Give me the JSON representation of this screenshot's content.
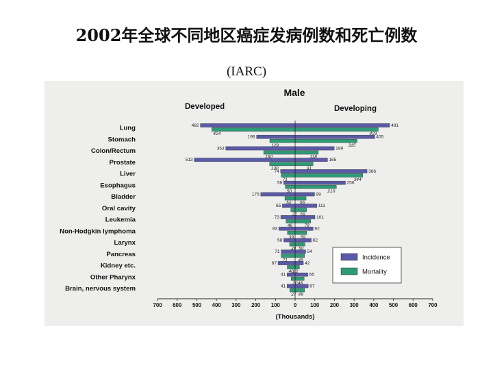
{
  "slide": {
    "title": "2002年全球不同地区癌症发病例数和死亡例数",
    "subtitle": "(IARC)"
  },
  "chart_data": {
    "type": "bar",
    "title": "Male",
    "left_panel_label": "Developed",
    "right_panel_label": "Developing",
    "xlabel": "(Thousands)",
    "xlim": [
      -700,
      700
    ],
    "xticks": [
      -700,
      -600,
      -500,
      -400,
      -300,
      -200,
      -100,
      0,
      100,
      200,
      300,
      400,
      500,
      600,
      700
    ],
    "xtick_labels": [
      "700",
      "600",
      "500",
      "400",
      "300",
      "200",
      "100",
      "0",
      "100",
      "200",
      "300",
      "400",
      "500",
      "600",
      "700"
    ],
    "categories": [
      "Lung",
      "Stomach",
      "Colon/Rectum",
      "Prostate",
      "Liver",
      "Esophagus",
      "Bladder",
      "Oral cavity",
      "Leukemia",
      "Non-Hodgkin lymphoma",
      "Larynx",
      "Pancreas",
      "Kidney etc.",
      "Other Pharynx",
      "Brain, nervous system"
    ],
    "series": [
      {
        "name": "Developed Incidence",
        "color": "#5a5aa8",
        "values": [
          482,
          196,
          353,
          513,
          74,
          58,
          175,
          65,
          73,
          83,
          58,
          71,
          87,
          41,
          41
        ]
      },
      {
        "name": "Developed Mortality",
        "color": "#2f9a78",
        "values": [
          424,
          129,
          160,
          130,
          71,
          50,
          52,
          22,
          46,
          39,
          28,
          71,
          40,
          20,
          27
        ]
      },
      {
        "name": "Developing Incidence",
        "color": "#5a5aa8",
        "values": [
          481,
          405,
          199,
          165,
          366,
          256,
          99,
          111,
          101,
          92,
          82,
          54,
          42,
          65,
          67
        ]
      },
      {
        "name": "Developing Mortality",
        "color": "#2f9a78",
        "values": [
          423,
          315,
          118,
          91,
          344,
          210,
          56,
          58,
          79,
          59,
          50,
          48,
          22,
          46,
          48
        ]
      }
    ],
    "legend": [
      {
        "label": "Incidence",
        "color": "#5a5aa8"
      },
      {
        "label": "Mortality",
        "color": "#2f9a78"
      }
    ],
    "legend_position": "bottom-right"
  }
}
